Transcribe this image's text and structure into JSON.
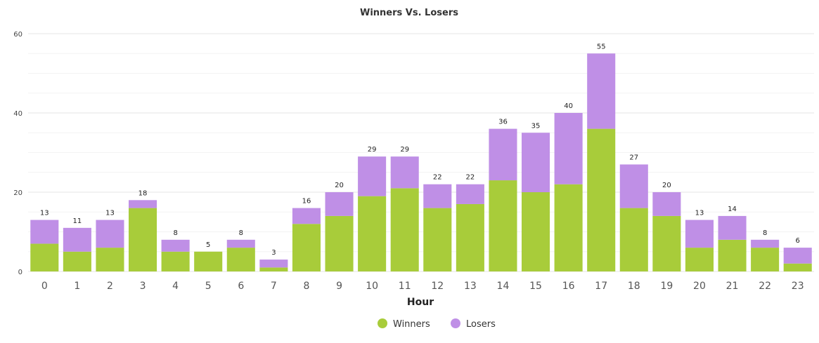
{
  "chart_data": {
    "type": "bar",
    "stacked": true,
    "title": "Winners Vs. Losers",
    "xlabel": "Hour",
    "ylabel": "",
    "ylim": [
      0,
      60
    ],
    "yticks": [
      0,
      20,
      40,
      60
    ],
    "grid": true,
    "legend_position": "bottom-center",
    "categories": [
      "0",
      "1",
      "2",
      "3",
      "4",
      "5",
      "6",
      "7",
      "8",
      "9",
      "10",
      "11",
      "12",
      "13",
      "14",
      "15",
      "16",
      "17",
      "18",
      "19",
      "20",
      "21",
      "22",
      "23"
    ],
    "series": [
      {
        "name": "Winners",
        "color": "#a8cc3a",
        "values": [
          7,
          5,
          6,
          16,
          5,
          5,
          6,
          1,
          12,
          14,
          19,
          21,
          16,
          17,
          23,
          20,
          22,
          36,
          16,
          14,
          6,
          8,
          6,
          2
        ]
      },
      {
        "name": "Losers",
        "color": "#bf8fe6",
        "values": [
          6,
          6,
          7,
          2,
          3,
          0,
          2,
          2,
          4,
          6,
          10,
          8,
          6,
          5,
          13,
          15,
          18,
          19,
          11,
          6,
          7,
          6,
          2,
          4
        ]
      }
    ],
    "totals": [
      13,
      11,
      13,
      18,
      8,
      5,
      8,
      3,
      16,
      20,
      29,
      29,
      22,
      22,
      36,
      35,
      40,
      55,
      27,
      20,
      13,
      14,
      8,
      6
    ]
  }
}
